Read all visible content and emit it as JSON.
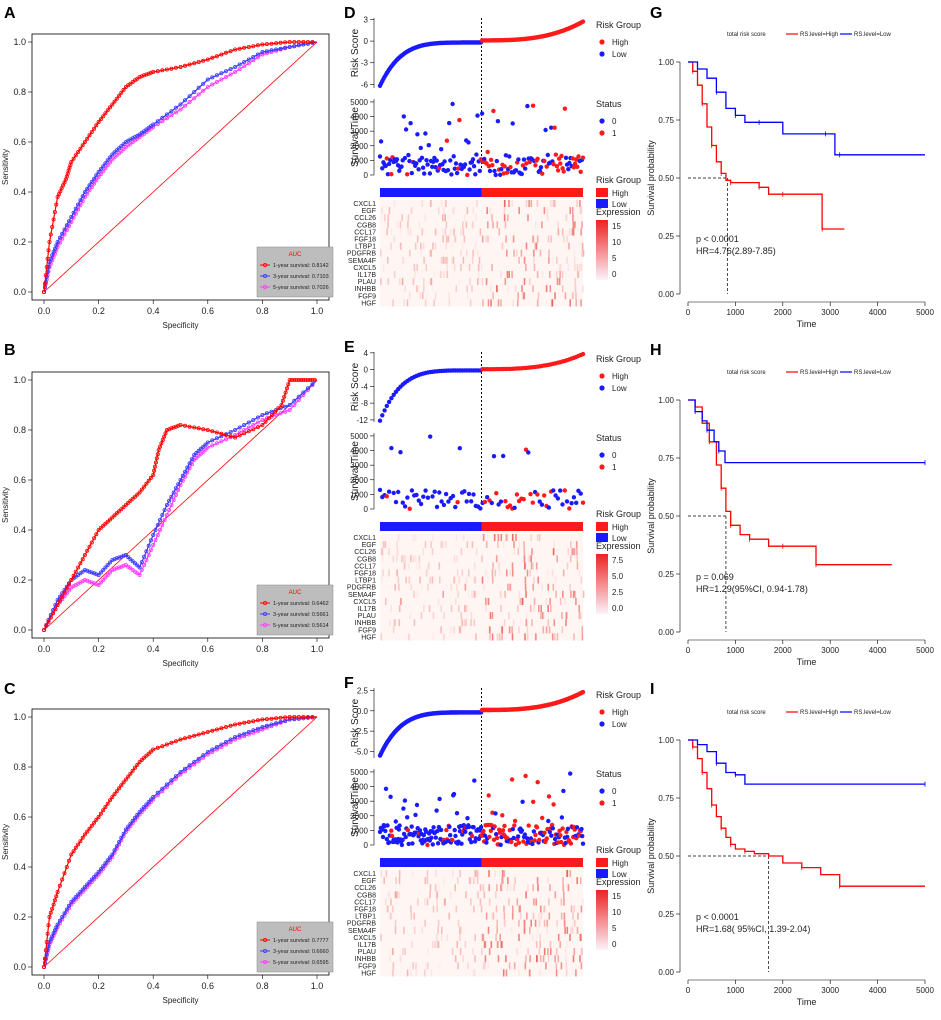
{
  "figure": {
    "panel_letters": [
      "A",
      "B",
      "C",
      "D",
      "E",
      "F",
      "G",
      "H",
      "I"
    ]
  },
  "chart_data": [
    {
      "id": "A",
      "type": "line",
      "title": "",
      "xlabel": "Specificity",
      "ylabel": "Sensitivity",
      "xlim": [
        0,
        1
      ],
      "ylim": [
        0,
        1
      ],
      "xticks": [
        "0.0",
        "0.2",
        "0.4",
        "0.6",
        "0.8",
        "1.0"
      ],
      "yticks": [
        "0.0",
        "0.2",
        "0.4",
        "0.6",
        "0.8",
        "1.0"
      ],
      "legend_title": "AUC",
      "legend": [
        "1-year survival: 0.8142",
        "3-year survival: 0.7103",
        "5-year survival: 0.7026"
      ],
      "colors": [
        "#ff0000",
        "#3b3bff",
        "#ff3bff"
      ],
      "series": [
        {
          "name": "1-year",
          "x": [
            0,
            0.02,
            0.05,
            0.08,
            0.1,
            0.15,
            0.2,
            0.25,
            0.3,
            0.35,
            0.4,
            0.5,
            0.6,
            0.7,
            0.8,
            0.9,
            1
          ],
          "y": [
            0,
            0.2,
            0.38,
            0.45,
            0.52,
            0.6,
            0.68,
            0.75,
            0.82,
            0.86,
            0.88,
            0.9,
            0.93,
            0.97,
            0.99,
            1,
            1
          ]
        },
        {
          "name": "3-year",
          "x": [
            0,
            0.02,
            0.05,
            0.1,
            0.15,
            0.2,
            0.25,
            0.3,
            0.35,
            0.4,
            0.5,
            0.6,
            0.7,
            0.8,
            0.9,
            1
          ],
          "y": [
            0,
            0.12,
            0.2,
            0.3,
            0.4,
            0.48,
            0.55,
            0.6,
            0.63,
            0.67,
            0.75,
            0.85,
            0.9,
            0.96,
            0.98,
            1
          ]
        },
        {
          "name": "5-year",
          "x": [
            0,
            0.02,
            0.05,
            0.1,
            0.15,
            0.2,
            0.25,
            0.3,
            0.35,
            0.4,
            0.5,
            0.6,
            0.7,
            0.8,
            0.9,
            1
          ],
          "y": [
            0,
            0.1,
            0.18,
            0.28,
            0.38,
            0.46,
            0.53,
            0.58,
            0.62,
            0.66,
            0.73,
            0.82,
            0.88,
            0.95,
            0.98,
            1
          ]
        }
      ]
    },
    {
      "id": "B",
      "type": "line",
      "title": "",
      "xlabel": "Specificity",
      "ylabel": "Sensitivity",
      "xlim": [
        0,
        1
      ],
      "ylim": [
        0,
        1
      ],
      "xticks": [
        "0.0",
        "0.2",
        "0.4",
        "0.6",
        "0.8",
        "1.0"
      ],
      "yticks": [
        "0.0",
        "0.2",
        "0.4",
        "0.6",
        "0.8",
        "1.0"
      ],
      "legend_title": "AUC",
      "legend": [
        "1-year survival: 0.6462",
        "3-year survival: 0.5661",
        "5-year survival: 0.5614"
      ],
      "colors": [
        "#ff0000",
        "#3b3bff",
        "#ff3bff"
      ],
      "series": [
        {
          "name": "1-year",
          "x": [
            0,
            0.05,
            0.1,
            0.15,
            0.2,
            0.25,
            0.3,
            0.35,
            0.4,
            0.42,
            0.45,
            0.5,
            0.6,
            0.7,
            0.8,
            0.87,
            0.9,
            0.95,
            1
          ],
          "y": [
            0,
            0.1,
            0.2,
            0.3,
            0.4,
            0.45,
            0.5,
            0.55,
            0.62,
            0.72,
            0.8,
            0.82,
            0.8,
            0.77,
            0.82,
            0.9,
            1,
            1,
            1
          ]
        },
        {
          "name": "3-year",
          "x": [
            0,
            0.05,
            0.1,
            0.15,
            0.2,
            0.25,
            0.3,
            0.35,
            0.4,
            0.45,
            0.5,
            0.55,
            0.6,
            0.7,
            0.8,
            0.9,
            1
          ],
          "y": [
            0,
            0.12,
            0.2,
            0.24,
            0.22,
            0.28,
            0.3,
            0.25,
            0.38,
            0.5,
            0.6,
            0.7,
            0.75,
            0.8,
            0.86,
            0.9,
            1
          ]
        },
        {
          "name": "5-year",
          "x": [
            0,
            0.05,
            0.1,
            0.15,
            0.2,
            0.25,
            0.3,
            0.35,
            0.4,
            0.45,
            0.5,
            0.55,
            0.6,
            0.7,
            0.8,
            0.9,
            1
          ],
          "y": [
            0,
            0.1,
            0.17,
            0.2,
            0.18,
            0.24,
            0.26,
            0.22,
            0.34,
            0.46,
            0.58,
            0.68,
            0.73,
            0.78,
            0.84,
            0.88,
            1
          ]
        }
      ]
    },
    {
      "id": "C",
      "type": "line",
      "title": "",
      "xlabel": "Specificity",
      "ylabel": "Sensitivity",
      "xlim": [
        0,
        1
      ],
      "ylim": [
        0,
        1
      ],
      "xticks": [
        "0.0",
        "0.2",
        "0.4",
        "0.6",
        "0.8",
        "1.0"
      ],
      "yticks": [
        "0.0",
        "0.2",
        "0.4",
        "0.6",
        "0.8",
        "1.0"
      ],
      "legend_title": "AUC",
      "legend": [
        "1-year survival: 0.7777",
        "3-year survival: 0.6660",
        "5-year survival: 0.6595"
      ],
      "colors": [
        "#ff0000",
        "#3b3bff",
        "#ff3bff"
      ],
      "series": [
        {
          "name": "1-year",
          "x": [
            0,
            0.02,
            0.05,
            0.1,
            0.15,
            0.2,
            0.25,
            0.3,
            0.35,
            0.4,
            0.5,
            0.6,
            0.7,
            0.8,
            0.9,
            1
          ],
          "y": [
            0,
            0.2,
            0.3,
            0.45,
            0.53,
            0.6,
            0.68,
            0.75,
            0.82,
            0.87,
            0.91,
            0.94,
            0.97,
            0.99,
            1,
            1
          ]
        },
        {
          "name": "3-year",
          "x": [
            0,
            0.02,
            0.05,
            0.1,
            0.15,
            0.2,
            0.25,
            0.3,
            0.35,
            0.4,
            0.5,
            0.6,
            0.7,
            0.8,
            0.9,
            1
          ],
          "y": [
            0,
            0.1,
            0.17,
            0.26,
            0.32,
            0.38,
            0.45,
            0.55,
            0.62,
            0.68,
            0.78,
            0.86,
            0.92,
            0.96,
            0.99,
            1
          ]
        },
        {
          "name": "5-year",
          "x": [
            0,
            0.02,
            0.05,
            0.1,
            0.15,
            0.2,
            0.25,
            0.3,
            0.35,
            0.4,
            0.5,
            0.6,
            0.7,
            0.8,
            0.9,
            1
          ],
          "y": [
            0,
            0.09,
            0.16,
            0.25,
            0.31,
            0.37,
            0.44,
            0.54,
            0.61,
            0.67,
            0.77,
            0.85,
            0.91,
            0.95,
            0.99,
            1
          ]
        }
      ]
    },
    {
      "id": "D",
      "type": "scatter",
      "risk_ylabel": "Risk Score",
      "risk_yticks": [
        "3",
        "0",
        "-3",
        "-6"
      ],
      "risk_ylim": [
        -6.5,
        3.2
      ],
      "surv_ylabel": "Survival Time",
      "surv_yticks": [
        "5000",
        "4000",
        "3000",
        "2000",
        "1000",
        "0"
      ],
      "surv_ylim": [
        0,
        5200
      ],
      "legend_risk_title": "Risk Group",
      "legend_risk": [
        "High",
        "Low"
      ],
      "legend_status_title": "Status",
      "legend_status": [
        "0",
        "1"
      ],
      "legend_bar_title": "Risk Group",
      "legend_bar": [
        "High",
        "Low"
      ],
      "expr_title": "Expression",
      "expr_ticks": [
        "15",
        "10",
        "5",
        "0"
      ],
      "genes": [
        "CXCL1",
        "EGF",
        "CCL26",
        "CGB8",
        "CCL17",
        "FGF18",
        "LTBP1",
        "PDGFRB",
        "SEMA4F",
        "CXCL5",
        "IL17B",
        "PLAU",
        "INHBB",
        "FGF9",
        "HGF"
      ],
      "n": 180,
      "seed": 11
    },
    {
      "id": "E",
      "type": "scatter",
      "risk_ylabel": "Risk Score",
      "risk_yticks": [
        "4",
        "0",
        "-4",
        "-8",
        "-12"
      ],
      "risk_ylim": [
        -12.5,
        4.2
      ],
      "surv_ylabel": "Survival Time",
      "surv_yticks": [
        "5000",
        "4000",
        "3000",
        "2000",
        "1000",
        "0"
      ],
      "surv_ylim": [
        0,
        5200
      ],
      "legend_risk_title": "Risk Group",
      "legend_risk": [
        "High",
        "Low"
      ],
      "legend_status_title": "Status",
      "legend_status": [
        "0",
        "1"
      ],
      "legend_bar_title": "Risk Group",
      "legend_bar": [
        "High",
        "Low"
      ],
      "expr_title": "Expression",
      "expr_ticks": [
        "7.5",
        "5.0",
        "2.5",
        "0.0"
      ],
      "genes": [
        "CXCL1",
        "EGF",
        "CCL26",
        "CGB8",
        "CCL17",
        "FGF18",
        "LTBP1",
        "PDGFRB",
        "SEMA4F",
        "CXCL5",
        "IL17B",
        "PLAU",
        "INHBB",
        "FGF9",
        "HGF"
      ],
      "n": 90,
      "seed": 23
    },
    {
      "id": "F",
      "type": "scatter",
      "risk_ylabel": "Risk Score",
      "risk_yticks": [
        "2.5",
        "0.0",
        "-2.5",
        "-5.0"
      ],
      "risk_ylim": [
        -5.8,
        2.8
      ],
      "surv_ylabel": "Survival Time",
      "surv_yticks": [
        "5000",
        "4000",
        "3000",
        "2000",
        "1000",
        "0"
      ],
      "surv_ylim": [
        0,
        5200
      ],
      "legend_risk_title": "Risk Group",
      "legend_risk": [
        "High",
        "Low"
      ],
      "legend_status_title": "Status",
      "legend_status": [
        "0",
        "1"
      ],
      "legend_bar_title": "Risk Group",
      "legend_bar": [
        "High",
        "Low"
      ],
      "expr_title": "Expression",
      "expr_ticks": [
        "15",
        "10",
        "5",
        "0"
      ],
      "genes": [
        "CXCL1",
        "EGF",
        "CCL26",
        "CGB8",
        "CCL17",
        "FGF18",
        "LTBP1",
        "PDGFRB",
        "SEMA4F",
        "CXCL5",
        "IL17B",
        "PLAU",
        "INHBB",
        "FGF9",
        "HGF"
      ],
      "n": 270,
      "seed": 37
    },
    {
      "id": "G",
      "type": "line",
      "legend_title": "total risk score",
      "legend": [
        "RS.level=High",
        "RS.level=Low"
      ],
      "colors": [
        "#ff0000",
        "#0000ff"
      ],
      "xlabel": "Time",
      "ylabel": "Survival probability",
      "xlim": [
        0,
        5000
      ],
      "ylim": [
        0,
        1
      ],
      "xticks": [
        "0",
        "1000",
        "2000",
        "3000",
        "4000",
        "5000"
      ],
      "yticks": [
        "0.00",
        "0.25",
        "0.50",
        "0.75",
        "1.00"
      ],
      "median_x": 830,
      "pvalue": "p < 0.0001",
      "hr": "HR=4.76(2.89-7.85)",
      "series": [
        {
          "name": "High",
          "x": [
            0,
            100,
            200,
            300,
            400,
            500,
            600,
            700,
            800,
            900,
            1200,
            1500,
            1700,
            2000,
            2800,
            2830,
            3300
          ],
          "y": [
            1,
            0.96,
            0.9,
            0.82,
            0.72,
            0.64,
            0.57,
            0.52,
            0.49,
            0.48,
            0.48,
            0.46,
            0.43,
            0.43,
            0.43,
            0.28,
            0.28
          ]
        },
        {
          "name": "Low",
          "x": [
            0,
            200,
            400,
            600,
            800,
            1000,
            1200,
            1500,
            2000,
            2900,
            3100,
            3200,
            5000
          ],
          "y": [
            1,
            0.97,
            0.93,
            0.87,
            0.8,
            0.77,
            0.74,
            0.74,
            0.69,
            0.69,
            0.6,
            0.6,
            0.6
          ]
        }
      ]
    },
    {
      "id": "H",
      "type": "line",
      "legend_title": "total risk score",
      "legend": [
        "RS.level=High",
        "RS.level=Low"
      ],
      "colors": [
        "#ff0000",
        "#0000ff"
      ],
      "xlabel": "Time",
      "ylabel": "Survival probability",
      "xlim": [
        0,
        5000
      ],
      "ylim": [
        0,
        1
      ],
      "xticks": [
        "0",
        "1000",
        "2000",
        "3000",
        "4000",
        "5000"
      ],
      "yticks": [
        "0.00",
        "0.25",
        "0.50",
        "0.75",
        "1.00"
      ],
      "median_x": 800,
      "pvalue": "p = 0.069",
      "hr": "HR=1.29(95%CI, 0.94-1.78)",
      "series": [
        {
          "name": "High",
          "x": [
            0,
            150,
            300,
            450,
            600,
            700,
            800,
            900,
            1100,
            1300,
            1700,
            2000,
            2600,
            2700,
            4300
          ],
          "y": [
            1,
            0.97,
            0.9,
            0.82,
            0.72,
            0.62,
            0.52,
            0.46,
            0.42,
            0.4,
            0.37,
            0.37,
            0.37,
            0.29,
            0.29
          ]
        },
        {
          "name": "Low",
          "x": [
            0,
            150,
            300,
            400,
            550,
            650,
            780,
            5000
          ],
          "y": [
            1,
            0.95,
            0.91,
            0.87,
            0.82,
            0.78,
            0.73,
            0.73
          ]
        }
      ]
    },
    {
      "id": "I",
      "type": "line",
      "legend_title": "total risk score",
      "legend": [
        "RS.level=High",
        "RS.level=Low"
      ],
      "colors": [
        "#ff0000",
        "#0000ff"
      ],
      "xlabel": "Time",
      "ylabel": "Survival probability",
      "xlim": [
        0,
        5000
      ],
      "ylim": [
        0,
        1
      ],
      "xticks": [
        "0",
        "1000",
        "2000",
        "3000",
        "4000",
        "5000"
      ],
      "yticks": [
        "0.00",
        "0.25",
        "0.50",
        "0.75",
        "1.00"
      ],
      "median_x": 1700,
      "pvalue": "p < 0.0001",
      "hr": "HR=1.68( 95%CI, 1.39-2.04)",
      "series": [
        {
          "name": "High",
          "x": [
            0,
            100,
            200,
            300,
            400,
            500,
            600,
            700,
            800,
            900,
            1000,
            1200,
            1400,
            1700,
            2000,
            2400,
            2800,
            3200,
            5000
          ],
          "y": [
            1,
            0.97,
            0.92,
            0.86,
            0.79,
            0.72,
            0.67,
            0.62,
            0.58,
            0.55,
            0.53,
            0.52,
            0.51,
            0.5,
            0.47,
            0.45,
            0.42,
            0.37,
            0.37
          ]
        },
        {
          "name": "Low",
          "x": [
            0,
            200,
            400,
            600,
            800,
            1000,
            1200,
            5000
          ],
          "y": [
            1,
            0.98,
            0.95,
            0.9,
            0.86,
            0.85,
            0.81,
            0.81
          ]
        }
      ]
    }
  ]
}
